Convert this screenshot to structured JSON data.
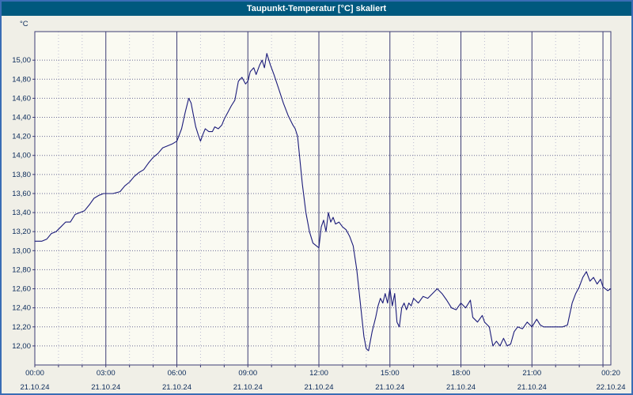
{
  "window": {
    "title": "Taupunkt-Temperatur [°C] skaliert"
  },
  "chart_data": {
    "type": "line",
    "title": "Taupunkt-Temperatur [°C] skaliert",
    "series_name": "Taupunkt-Temperatur",
    "ylabel": "°C",
    "xlabel": "",
    "ylim": [
      11.8,
      15.3
    ],
    "xlim_hours": [
      0,
      24.333
    ],
    "grid": "on",
    "legend": "none",
    "colors": {
      "titlebar_bg": "#00597e",
      "title_text": "#ffffff",
      "window_border": "#3a6db5",
      "page_bg": "#f0efe7",
      "plot_bg": "#fafaf2",
      "line": "#1b1b7a",
      "grid_major": "#3c3c74",
      "grid_dotted": "#6a6a94",
      "grid_minor": "#bcbcd2",
      "text": "#0a2a5a"
    },
    "y_ticks": [
      {
        "value": 12.0,
        "label": "12,00"
      },
      {
        "value": 12.2,
        "label": "12,20"
      },
      {
        "value": 12.4,
        "label": "12,40"
      },
      {
        "value": 12.6,
        "label": "12,60"
      },
      {
        "value": 12.8,
        "label": "12,80"
      },
      {
        "value": 13.0,
        "label": "13,00"
      },
      {
        "value": 13.2,
        "label": "13,20"
      },
      {
        "value": 13.4,
        "label": "13,40"
      },
      {
        "value": 13.6,
        "label": "13,60"
      },
      {
        "value": 13.8,
        "label": "13,80"
      },
      {
        "value": 14.0,
        "label": "14,00"
      },
      {
        "value": 14.2,
        "label": "14,20"
      },
      {
        "value": 14.4,
        "label": "14,40"
      },
      {
        "value": 14.6,
        "label": "14,60"
      },
      {
        "value": 14.8,
        "label": "14,80"
      },
      {
        "value": 15.0,
        "label": "15,00"
      }
    ],
    "x_ticks": [
      {
        "hour": 0,
        "time": "00:00",
        "date": "21.10.24"
      },
      {
        "hour": 3,
        "time": "03:00",
        "date": "21.10.24"
      },
      {
        "hour": 6,
        "time": "06:00",
        "date": "21.10.24"
      },
      {
        "hour": 9,
        "time": "09:00",
        "date": "21.10.24"
      },
      {
        "hour": 12,
        "time": "12:00",
        "date": "21.10.24"
      },
      {
        "hour": 15,
        "time": "15:00",
        "date": "21.10.24"
      },
      {
        "hour": 18,
        "time": "18:00",
        "date": "21.10.24"
      },
      {
        "hour": 21,
        "time": "21:00",
        "date": "21.10.24"
      },
      {
        "hour": 24.333,
        "time": "00:20",
        "date": "22.10.24"
      }
    ],
    "points": [
      [
        0,
        13.1
      ],
      [
        0.3,
        13.1
      ],
      [
        0.5,
        13.12
      ],
      [
        0.7,
        13.18
      ],
      [
        0.9,
        13.2
      ],
      [
        1.1,
        13.25
      ],
      [
        1.3,
        13.3
      ],
      [
        1.5,
        13.3
      ],
      [
        1.7,
        13.38
      ],
      [
        1.9,
        13.4
      ],
      [
        2.1,
        13.42
      ],
      [
        2.3,
        13.48
      ],
      [
        2.5,
        13.55
      ],
      [
        2.7,
        13.58
      ],
      [
        2.9,
        13.6
      ],
      [
        3.3,
        13.6
      ],
      [
        3.6,
        13.62
      ],
      [
        3.8,
        13.68
      ],
      [
        4,
        13.72
      ],
      [
        4.2,
        13.78
      ],
      [
        4.4,
        13.82
      ],
      [
        4.6,
        13.85
      ],
      [
        4.8,
        13.92
      ],
      [
        5,
        13.98
      ],
      [
        5.2,
        14.02
      ],
      [
        5.4,
        14.08
      ],
      [
        5.6,
        14.1
      ],
      [
        5.8,
        14.12
      ],
      [
        6,
        14.15
      ],
      [
        6.2,
        14.28
      ],
      [
        6.35,
        14.45
      ],
      [
        6.5,
        14.6
      ],
      [
        6.6,
        14.55
      ],
      [
        6.7,
        14.42
      ],
      [
        6.8,
        14.3
      ],
      [
        6.9,
        14.22
      ],
      [
        7,
        14.15
      ],
      [
        7.1,
        14.22
      ],
      [
        7.2,
        14.28
      ],
      [
        7.35,
        14.25
      ],
      [
        7.5,
        14.25
      ],
      [
        7.6,
        14.3
      ],
      [
        7.75,
        14.28
      ],
      [
        7.9,
        14.32
      ],
      [
        8,
        14.38
      ],
      [
        8.15,
        14.45
      ],
      [
        8.3,
        14.52
      ],
      [
        8.45,
        14.58
      ],
      [
        8.6,
        14.78
      ],
      [
        8.75,
        14.82
      ],
      [
        8.9,
        14.75
      ],
      [
        9,
        14.78
      ],
      [
        9.1,
        14.88
      ],
      [
        9.25,
        14.92
      ],
      [
        9.35,
        14.85
      ],
      [
        9.5,
        14.95
      ],
      [
        9.6,
        15
      ],
      [
        9.7,
        14.92
      ],
      [
        9.8,
        15.07
      ],
      [
        9.95,
        14.95
      ],
      [
        10.1,
        14.85
      ],
      [
        10.3,
        14.7
      ],
      [
        10.5,
        14.55
      ],
      [
        10.7,
        14.42
      ],
      [
        10.9,
        14.32
      ],
      [
        11,
        14.28
      ],
      [
        11.1,
        14.2
      ],
      [
        11.2,
        13.95
      ],
      [
        11.3,
        13.7
      ],
      [
        11.45,
        13.4
      ],
      [
        11.6,
        13.2
      ],
      [
        11.75,
        13.08
      ],
      [
        11.9,
        13.05
      ],
      [
        12,
        13.03
      ],
      [
        12.1,
        13.25
      ],
      [
        12.2,
        13.32
      ],
      [
        12.3,
        13.2
      ],
      [
        12.4,
        13.4
      ],
      [
        12.5,
        13.3
      ],
      [
        12.6,
        13.35
      ],
      [
        12.7,
        13.28
      ],
      [
        12.85,
        13.3
      ],
      [
        13,
        13.25
      ],
      [
        13.15,
        13.22
      ],
      [
        13.3,
        13.15
      ],
      [
        13.45,
        13.05
      ],
      [
        13.6,
        12.8
      ],
      [
        13.75,
        12.45
      ],
      [
        13.9,
        12.1
      ],
      [
        14,
        11.97
      ],
      [
        14.1,
        11.95
      ],
      [
        14.25,
        12.15
      ],
      [
        14.4,
        12.3
      ],
      [
        14.5,
        12.42
      ],
      [
        14.6,
        12.5
      ],
      [
        14.7,
        12.45
      ],
      [
        14.8,
        12.55
      ],
      [
        14.9,
        12.45
      ],
      [
        15,
        12.6
      ],
      [
        15.1,
        12.42
      ],
      [
        15.2,
        12.55
      ],
      [
        15.3,
        12.25
      ],
      [
        15.4,
        12.2
      ],
      [
        15.5,
        12.4
      ],
      [
        15.6,
        12.45
      ],
      [
        15.7,
        12.38
      ],
      [
        15.8,
        12.45
      ],
      [
        15.9,
        12.42
      ],
      [
        16,
        12.5
      ],
      [
        16.2,
        12.45
      ],
      [
        16.4,
        12.52
      ],
      [
        16.6,
        12.5
      ],
      [
        16.8,
        12.55
      ],
      [
        17,
        12.6
      ],
      [
        17.2,
        12.55
      ],
      [
        17.4,
        12.48
      ],
      [
        17.6,
        12.4
      ],
      [
        17.8,
        12.38
      ],
      [
        18,
        12.45
      ],
      [
        18.2,
        12.4
      ],
      [
        18.4,
        12.48
      ],
      [
        18.5,
        12.3
      ],
      [
        18.7,
        12.25
      ],
      [
        18.9,
        12.32
      ],
      [
        19,
        12.25
      ],
      [
        19.2,
        12.2
      ],
      [
        19.35,
        12
      ],
      [
        19.5,
        12.05
      ],
      [
        19.65,
        12
      ],
      [
        19.8,
        12.08
      ],
      [
        19.95,
        12
      ],
      [
        20.1,
        12.02
      ],
      [
        20.25,
        12.15
      ],
      [
        20.4,
        12.2
      ],
      [
        20.6,
        12.18
      ],
      [
        20.8,
        12.25
      ],
      [
        21,
        12.2
      ],
      [
        21.2,
        12.28
      ],
      [
        21.35,
        12.22
      ],
      [
        21.5,
        12.2
      ],
      [
        21.7,
        12.2
      ],
      [
        22,
        12.2
      ],
      [
        22.3,
        12.2
      ],
      [
        22.5,
        12.22
      ],
      [
        22.7,
        12.45
      ],
      [
        22.85,
        12.55
      ],
      [
        23,
        12.62
      ],
      [
        23.15,
        12.72
      ],
      [
        23.3,
        12.78
      ],
      [
        23.45,
        12.68
      ],
      [
        23.6,
        12.72
      ],
      [
        23.75,
        12.65
      ],
      [
        23.9,
        12.7
      ],
      [
        24,
        12.62
      ],
      [
        24.2,
        12.58
      ],
      [
        24.33,
        12.6
      ]
    ]
  }
}
